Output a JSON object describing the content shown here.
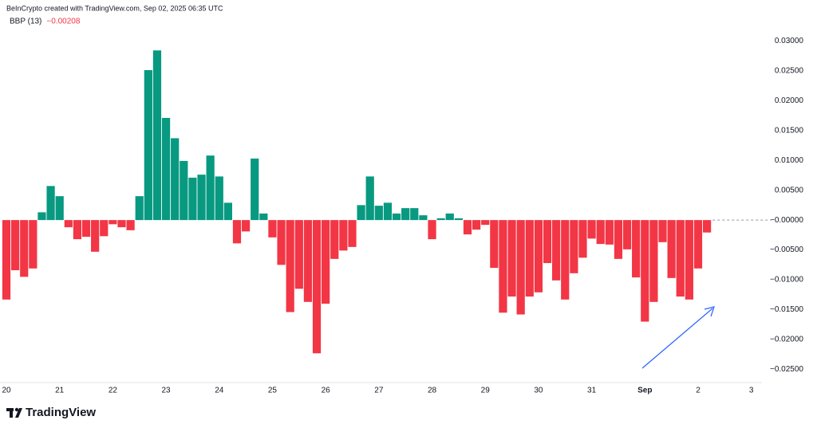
{
  "attribution": "BeInCrypto created with TradingView.com, Sep 02, 2025 06:35 UTC",
  "branding": "TradingView",
  "chart_data": {
    "type": "bar",
    "legend_title": "BBP (13)",
    "legend_value": "−0.00208",
    "up_color": "#089981",
    "down_color": "#f23645",
    "x": [
      20,
      20.1667,
      20.3333,
      20.5,
      20.6667,
      20.8333,
      21,
      21.1667,
      21.3333,
      21.5,
      21.6667,
      21.8333,
      22,
      22.1667,
      22.3333,
      22.5,
      22.6667,
      22.8333,
      23,
      23.1667,
      23.3333,
      23.5,
      23.6667,
      23.8333,
      24,
      24.1667,
      24.3333,
      24.5,
      24.6667,
      24.8333,
      25,
      25.1667,
      25.3333,
      25.5,
      25.6667,
      25.8333,
      26,
      26.1667,
      26.3333,
      26.5,
      26.6667,
      26.8333,
      27,
      27.1667,
      27.3333,
      27.5,
      27.6667,
      27.8333,
      28,
      28.1667,
      28.3333,
      28.5,
      28.6667,
      28.8333,
      29,
      29.1667,
      29.3333,
      29.5,
      29.6667,
      29.8333,
      30,
      30.1667,
      30.3333,
      30.5,
      30.6667,
      30.8333,
      31,
      31.1667,
      31.3333,
      31.5,
      31.6667,
      31.8333,
      32,
      32.1667,
      32.3333,
      32.5,
      32.6667,
      32.8333,
      33,
      33.1667
    ],
    "values": [
      -0.0133,
      -0.0084,
      -0.0095,
      -0.0081,
      0.0013,
      0.0057,
      0.004,
      -0.0012,
      -0.0032,
      -0.0028,
      -0.0053,
      -0.0027,
      -0.0007,
      -0.0012,
      -0.0017,
      0.004,
      0.0251,
      0.0284,
      0.0171,
      0.0137,
      0.0099,
      0.0071,
      0.0076,
      0.0108,
      0.0073,
      0.0029,
      -0.0039,
      -0.0019,
      0.0103,
      0.0011,
      -0.0029,
      -0.0075,
      -0.0154,
      -0.0115,
      -0.0137,
      -0.0223,
      -0.014,
      -0.0065,
      -0.0051,
      -0.0045,
      0.0025,
      0.0073,
      0.0024,
      0.0029,
      0.0011,
      0.002,
      0.002,
      0.0008,
      -0.0032,
      0.0003,
      0.0011,
      0.0003,
      -0.0024,
      -0.0016,
      -0.0008,
      -0.008,
      -0.0155,
      -0.0128,
      -0.0158,
      -0.0128,
      -0.0121,
      -0.0072,
      -0.0101,
      -0.0133,
      -0.0089,
      -0.0063,
      -0.0031,
      -0.004,
      -0.0041,
      -0.0065,
      -0.0049,
      -0.0096,
      -0.017,
      -0.0137,
      -0.0037,
      -0.0097,
      -0.0128,
      -0.0133,
      -0.0081,
      -0.00208
    ],
    "xlim": [
      19.88,
      34.2
    ],
    "xticks": [
      20,
      21,
      22,
      23,
      24,
      25,
      26,
      27,
      28,
      29,
      30,
      31,
      {
        "value": 32,
        "label": "Sep"
      },
      {
        "value": 33,
        "label": "2"
      },
      {
        "value": 34,
        "label": "3"
      }
    ],
    "ylim": [
      -0.0272,
      0.0315
    ],
    "yticks": [
      {
        "value": 0.03,
        "label": "0.03000"
      },
      {
        "value": 0.025,
        "label": "0.02500"
      },
      {
        "value": 0.02,
        "label": "0.02000"
      },
      {
        "value": 0.015,
        "label": "0.01500"
      },
      {
        "value": 0.01,
        "label": "0.01000"
      },
      {
        "value": 0.005,
        "label": "0.00500"
      },
      {
        "value": 0,
        "label": "−0.00000"
      },
      {
        "value": -0.005,
        "label": "−0.00500"
      },
      {
        "value": -0.01,
        "label": "−0.01000"
      },
      {
        "value": -0.015,
        "label": "−0.01500"
      },
      {
        "value": -0.02,
        "label": "−0.02000"
      },
      {
        "value": -0.025,
        "label": "−0.02500"
      }
    ]
  }
}
